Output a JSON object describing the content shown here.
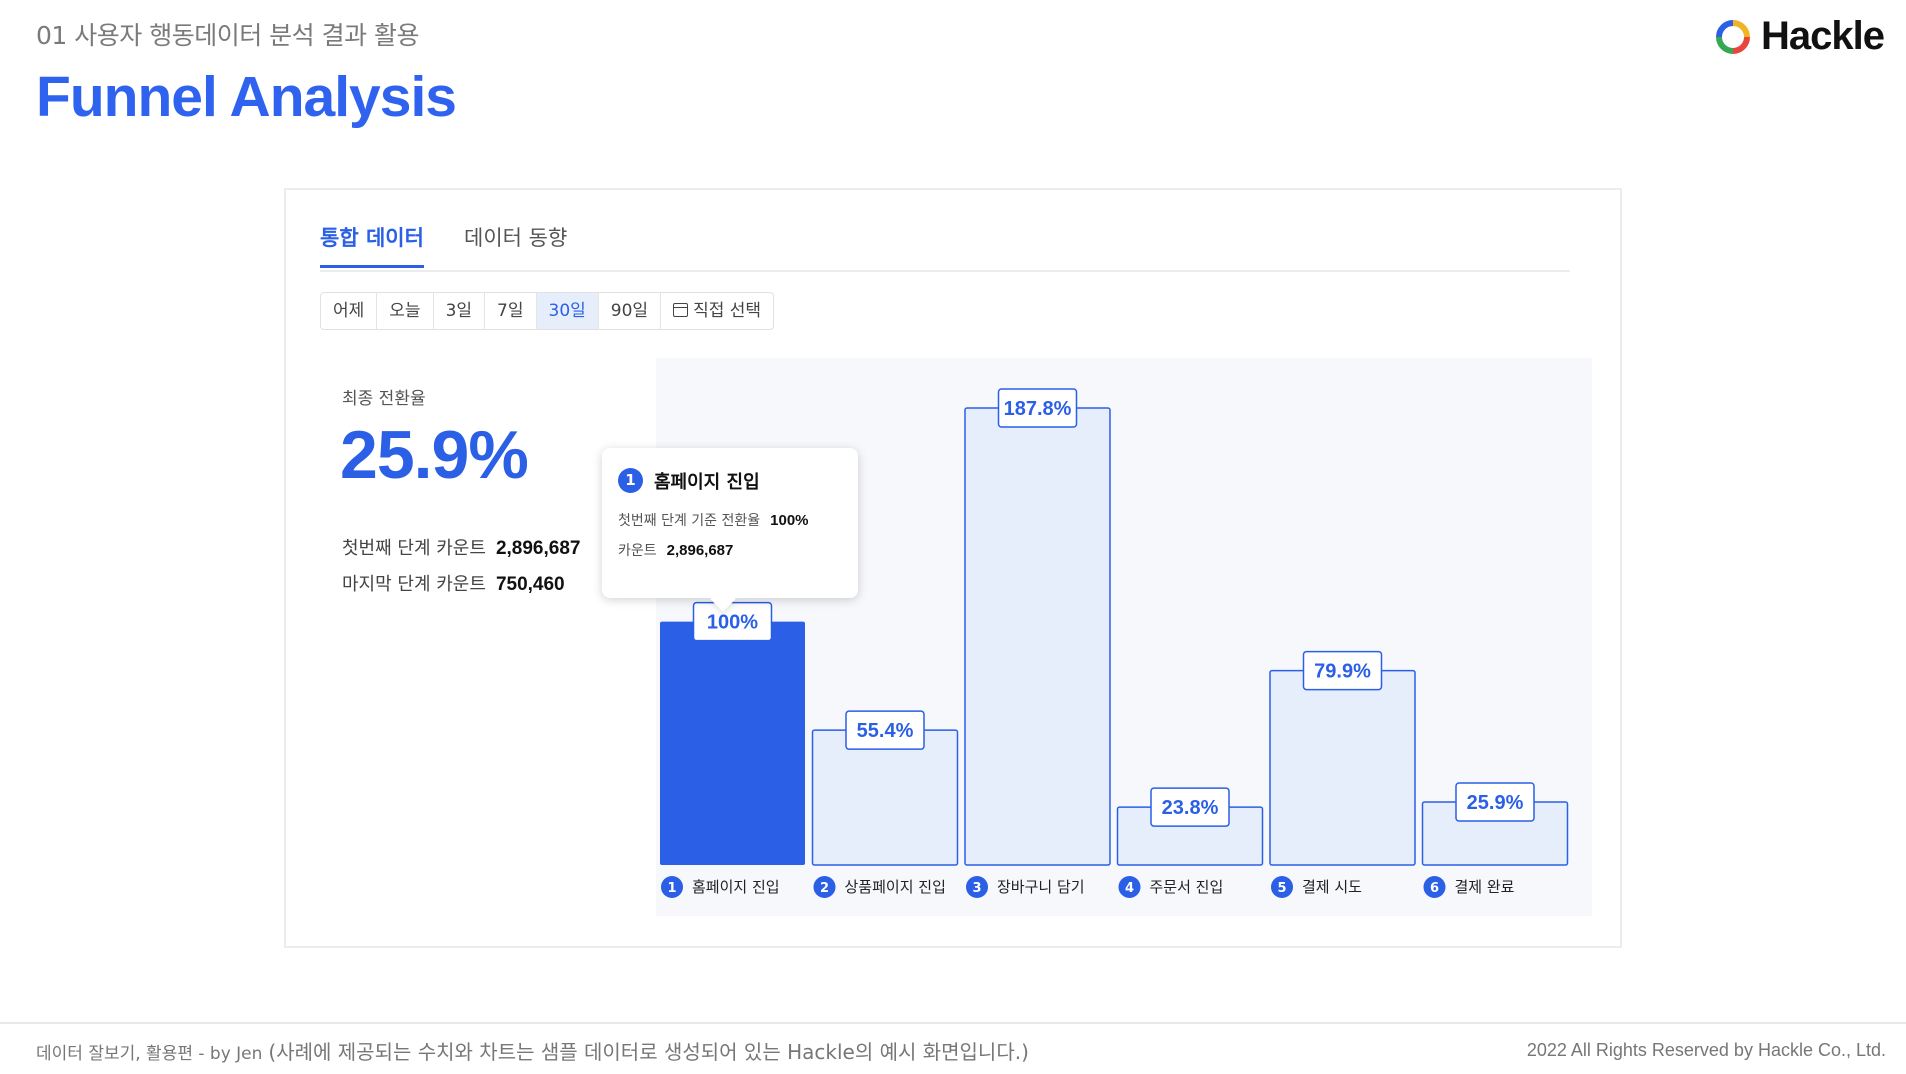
{
  "header": {
    "section_label": "01 사용자 행동데이터 분석 결과 활용",
    "title": "Funnel Analysis",
    "brand_name": "Hackle"
  },
  "tabs": [
    {
      "label": "통합 데이터",
      "active": true
    },
    {
      "label": "데이터 동향",
      "active": false
    }
  ],
  "date_range": {
    "options": [
      "어제",
      "오늘",
      "3일",
      "7일",
      "30일",
      "90일",
      "직접 선택"
    ],
    "selected": "30일",
    "custom_icon": "calendar-icon"
  },
  "summary": {
    "conversion_label": "최종 전환율",
    "conversion_value": "25.9%",
    "first_count_label": "첫번째 단계 카운트",
    "first_count_value": "2,896,687",
    "last_count_label": "마지막 단계 카운트",
    "last_count_value": "750,460"
  },
  "tooltip": {
    "step_number": "1",
    "title": "홈페이지 진입",
    "rate_label": "첫번째 단계 기준 전환율",
    "rate_value": "100%",
    "count_label": "카운트",
    "count_value": "2,896,687"
  },
  "chart_data": {
    "type": "bar",
    "categories": [
      "홈페이지 진입",
      "상품페이지 진입",
      "장바구니 담기",
      "주문서 진입",
      "결제 시도",
      "결제 완료"
    ],
    "step_numbers": [
      "1",
      "2",
      "3",
      "4",
      "5",
      "6"
    ],
    "values": [
      100,
      55.4,
      187.8,
      23.8,
      79.9,
      25.9
    ],
    "value_labels": [
      "100%",
      "55.4%",
      "187.8%",
      "23.8%",
      "79.9%",
      "25.9%"
    ],
    "highlighted_index": 0,
    "ylim": [
      0,
      187.8
    ],
    "colors": {
      "highlight_fill": "#2a5fe6",
      "bar_fill": "#e6eefc",
      "bar_stroke": "#2a5fe6",
      "area_background": "#f6f8fc"
    }
  },
  "footer": {
    "left_text": "데이터 잘보기, 활용편 - by Jen",
    "note": "(사례에 제공되는 수치와 차트는 샘플 데이터로 생성되어 있는 Hackle의 예시 화면입니다.)",
    "right_text": "2022 All Rights Reserved by Hackle Co., Ltd."
  }
}
